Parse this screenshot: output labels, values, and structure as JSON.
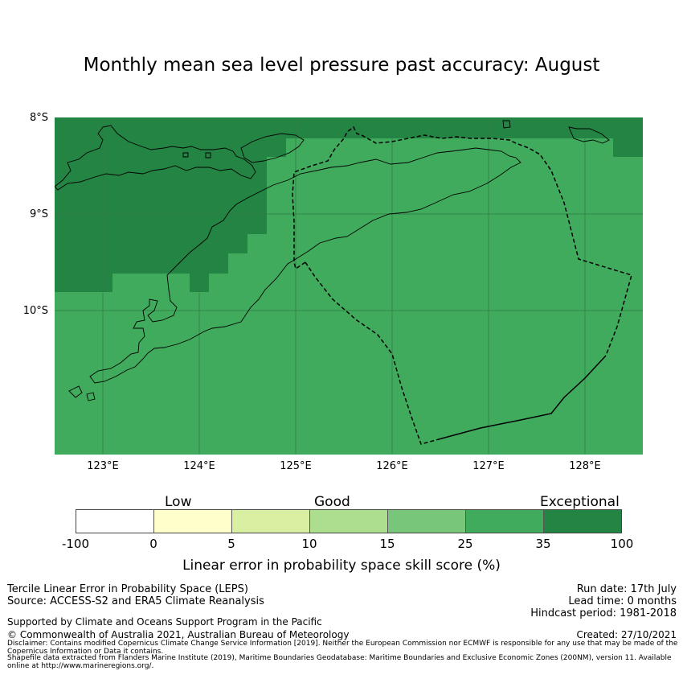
{
  "title": "Monthly mean sea level pressure past accuracy: August",
  "map": {
    "lat_labels": [
      "8°S",
      "9°S",
      "10°S"
    ],
    "lon_labels": [
      "123°E",
      "124°E",
      "125°E",
      "126°E",
      "127°E",
      "128°E"
    ],
    "colors": {
      "good_35": "#41ab5d",
      "exceptional": "#238443",
      "coast": "#000000"
    }
  },
  "colorbar": {
    "words": [
      "Low",
      "Good",
      "Exceptional"
    ],
    "ticks": [
      "-100",
      "0",
      "5",
      "10",
      "15",
      "25",
      "35",
      "100"
    ],
    "colors": [
      "#ffffff",
      "#ffffcc",
      "#d9f0a3",
      "#addd8e",
      "#78c679",
      "#41ab5d",
      "#238443"
    ],
    "label": "Linear error in probability space skill score (%)"
  },
  "footer": {
    "method": "Tercile Linear Error in Probability Space (LEPS)",
    "source": "Source: ACCESS-S2 and ERA5 Climate Reanalysis",
    "run_date": "Run date: 17th July",
    "lead_time": "Lead time: 0 months",
    "hindcast": "Hindcast period: 1981-2018",
    "support": "Supported by Climate and Oceans Support Program in the Pacific",
    "copyright": "© Commonwealth of Australia 2021, Australian Bureau of Meteorology",
    "created": "Created: 27/10/2021",
    "disclaimer1": "Disclaimer: Contains modified Copernicus Climate Change Service Information [2019]. Neither the European Commission nor ECMWF is responsible for any use that may be made of the Copernicus Information or Data it contains.",
    "disclaimer2": "Shapefile data extracted from Flanders Marine Institute (2019), Maritime Boundaries Geodatabase: Maritime Boundaries and Exclusive Economic Zones (200NM), version 11. Available online at http://www.marineregions.org/."
  }
}
